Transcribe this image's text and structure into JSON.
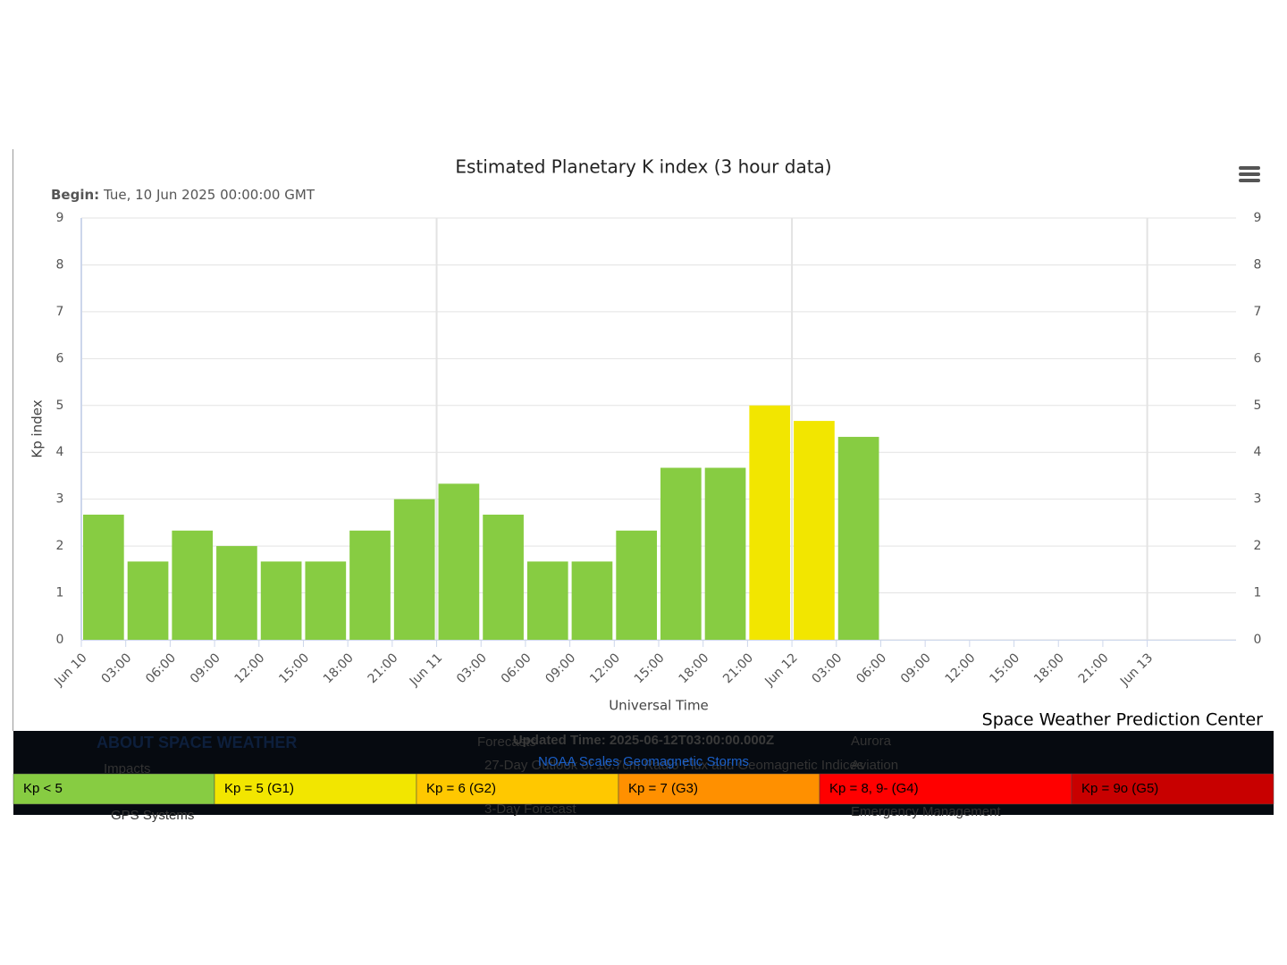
{
  "chart_data": {
    "type": "bar",
    "title": "Estimated Planetary K index (3 hour data)",
    "subtitle_label": "Begin:",
    "subtitle": "Tue, 10 Jun 2025 00:00:00 GMT",
    "ylabel": "Kp index",
    "xlabel": "Universal Time",
    "credit": "Space Weather Prediction Center",
    "x": [
      0,
      3,
      6,
      9,
      12,
      15,
      18,
      21,
      24,
      27,
      30,
      33,
      36,
      39,
      42,
      45,
      48,
      51
    ],
    "bar_width": 3,
    "values": [
      2.67,
      1.67,
      2.33,
      2.0,
      1.67,
      1.67,
      2.33,
      3.0,
      3.33,
      2.67,
      1.67,
      1.67,
      2.33,
      3.67,
      3.67,
      5.0,
      4.67,
      4.33
    ],
    "colors": [
      "#87cc42",
      "#87cc42",
      "#87cc42",
      "#87cc42",
      "#87cc42",
      "#87cc42",
      "#87cc42",
      "#87cc42",
      "#87cc42",
      "#87cc42",
      "#87cc42",
      "#87cc42",
      "#87cc42",
      "#87cc42",
      "#87cc42",
      "#f2e600",
      "#f2e600",
      "#87cc42"
    ],
    "xlim": [
      0,
      78
    ],
    "xticks": [
      {
        "value": 0,
        "label": "Jun 10"
      },
      {
        "value": 3,
        "label": "03:00"
      },
      {
        "value": 6,
        "label": "06:00"
      },
      {
        "value": 9,
        "label": "09:00"
      },
      {
        "value": 12,
        "label": "12:00"
      },
      {
        "value": 15,
        "label": "15:00"
      },
      {
        "value": 18,
        "label": "18:00"
      },
      {
        "value": 21,
        "label": "21:00"
      },
      {
        "value": 24,
        "label": "Jun 11"
      },
      {
        "value": 27,
        "label": "03:00"
      },
      {
        "value": 30,
        "label": "06:00"
      },
      {
        "value": 33,
        "label": "09:00"
      },
      {
        "value": 36,
        "label": "12:00"
      },
      {
        "value": 39,
        "label": "15:00"
      },
      {
        "value": 42,
        "label": "18:00"
      },
      {
        "value": 45,
        "label": "21:00"
      },
      {
        "value": 48,
        "label": "Jun 12"
      },
      {
        "value": 51,
        "label": "03:00"
      },
      {
        "value": 54,
        "label": "06:00"
      },
      {
        "value": 57,
        "label": "09:00"
      },
      {
        "value": 60,
        "label": "12:00"
      },
      {
        "value": 63,
        "label": "15:00"
      },
      {
        "value": 66,
        "label": "18:00"
      },
      {
        "value": 69,
        "label": "21:00"
      },
      {
        "value": 72,
        "label": "Jun 13"
      }
    ],
    "ylim": [
      0,
      9
    ],
    "yticks": [
      0,
      1,
      2,
      3,
      4,
      5,
      6,
      7,
      8,
      9
    ],
    "grid": true
  },
  "footer": {
    "about": "ABOUT SPACE WEATHER",
    "impacts": "Impacts",
    "gps": "GPS Systems",
    "forecasts": "Forecasts",
    "outlook": "27-Day Outlook of 10.7cm Radio Flux and Geomagnetic Indices",
    "three_day": "3-Day Forecast",
    "aurora": "Aurora",
    "aviation": "Aviation",
    "emergency": "Emergency Management",
    "updated": "Updated Time: 2025-06-12T03:00:00.000Z",
    "scales_title": "NOAA Scales Geomagnetic Storms",
    "scales": [
      {
        "label": "Kp < 5",
        "color": "#87cc42"
      },
      {
        "label": "Kp = 5 (G1)",
        "color": "#f2e600"
      },
      {
        "label": "Kp = 6 (G2)",
        "color": "#ffc800"
      },
      {
        "label": "Kp = 7 (G3)",
        "color": "#ff9000"
      },
      {
        "label": "Kp = 8, 9- (G4)",
        "color": "#ff0000"
      },
      {
        "label": "Kp = 9o (G5)",
        "color": "#c80000"
      }
    ]
  }
}
